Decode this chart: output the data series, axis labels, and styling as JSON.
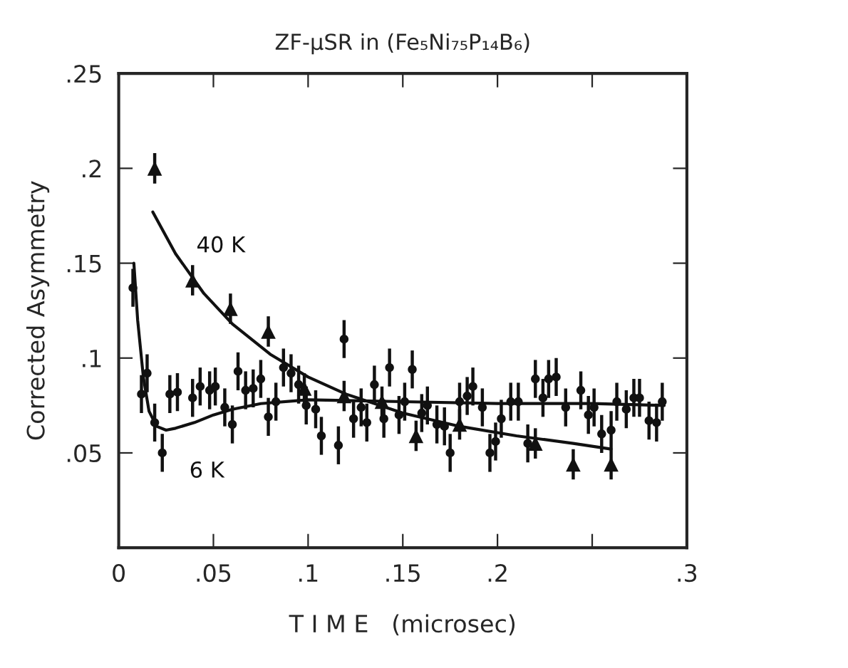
{
  "chart_data": {
    "type": "scatter",
    "title": "ZF-μSR in (Fe₅Ni₇₅P₁₄B₆)",
    "xlabel": "T I M E   (microsec)",
    "ylabel": "Corrected Asymmetry",
    "xlim": [
      0,
      0.3
    ],
    "ylim": [
      0,
      0.25
    ],
    "xticks": [
      {
        "value": 0,
        "label": "0"
      },
      {
        "value": 0.05,
        "label": ".05"
      },
      {
        "value": 0.1,
        "label": ".1"
      },
      {
        "value": 0.15,
        "label": ".15"
      },
      {
        "value": 0.2,
        "label": ".2"
      },
      {
        "value": 0.25,
        "label": null
      },
      {
        "value": 0.3,
        "label": ".3"
      }
    ],
    "yticks": [
      {
        "value": 0.05,
        "label": ".05"
      },
      {
        "value": 0.1,
        "label": ".1"
      },
      {
        "value": 0.15,
        "label": ".15"
      },
      {
        "value": 0.2,
        "label": ".2"
      },
      {
        "value": 0.25,
        "label": ".25"
      }
    ],
    "grid": false,
    "legend": false,
    "series": [
      {
        "marker": "triangle",
        "color": "#111111",
        "x": [
          0.019,
          0.039,
          0.059,
          0.079,
          0.098,
          0.119,
          0.139,
          0.157,
          0.18,
          0.22,
          0.24,
          0.26
        ],
        "values": [
          0.2,
          0.141,
          0.126,
          0.114,
          0.084,
          0.08,
          0.077,
          0.059,
          0.065,
          0.055,
          0.044,
          0.044
        ],
        "errors": [
          0.008,
          0.008,
          0.008,
          0.008,
          0.008,
          0.008,
          0.008,
          0.008,
          0.008,
          0.008,
          0.008,
          0.008
        ]
      },
      {
        "marker": "circle",
        "color": "#111111",
        "x": [
          0.0075,
          0.012,
          0.015,
          0.019,
          0.023,
          0.027,
          0.031,
          0.039,
          0.043,
          0.048,
          0.051,
          0.056,
          0.06,
          0.063,
          0.067,
          0.071,
          0.075,
          0.079,
          0.083,
          0.087,
          0.091,
          0.095,
          0.099,
          0.104,
          0.107,
          0.116,
          0.119,
          0.124,
          0.128,
          0.131,
          0.135,
          0.14,
          0.143,
          0.148,
          0.151,
          0.155,
          0.16,
          0.163,
          0.168,
          0.172,
          0.175,
          0.18,
          0.184,
          0.187,
          0.192,
          0.196,
          0.199,
          0.202,
          0.207,
          0.211,
          0.216,
          0.22,
          0.224,
          0.227,
          0.231,
          0.236,
          0.244,
          0.248,
          0.251,
          0.255,
          0.26,
          0.263,
          0.268,
          0.272,
          0.275,
          0.28,
          0.284,
          0.287
        ],
        "values": [
          0.137,
          0.081,
          0.092,
          0.066,
          0.05,
          0.081,
          0.082,
          0.079,
          0.085,
          0.083,
          0.085,
          0.074,
          0.065,
          0.093,
          0.083,
          0.084,
          0.089,
          0.069,
          0.077,
          0.095,
          0.092,
          0.086,
          0.075,
          0.073,
          0.059,
          0.054,
          0.11,
          0.068,
          0.074,
          0.066,
          0.086,
          0.068,
          0.095,
          0.07,
          0.077,
          0.094,
          0.071,
          0.075,
          0.065,
          0.064,
          0.05,
          0.077,
          0.08,
          0.085,
          0.074,
          0.05,
          0.056,
          0.068,
          0.077,
          0.077,
          0.055,
          0.089,
          0.079,
          0.089,
          0.09,
          0.074,
          0.083,
          0.07,
          0.074,
          0.06,
          0.062,
          0.077,
          0.073,
          0.079,
          0.079,
          0.067,
          0.066,
          0.077
        ],
        "errors": [
          0.01,
          0.01,
          0.01,
          0.01,
          0.01,
          0.01,
          0.01,
          0.01,
          0.01,
          0.01,
          0.01,
          0.01,
          0.01,
          0.01,
          0.01,
          0.01,
          0.01,
          0.01,
          0.01,
          0.01,
          0.01,
          0.01,
          0.01,
          0.01,
          0.01,
          0.01,
          0.01,
          0.01,
          0.01,
          0.01,
          0.01,
          0.01,
          0.01,
          0.01,
          0.01,
          0.01,
          0.01,
          0.01,
          0.01,
          0.01,
          0.01,
          0.01,
          0.01,
          0.01,
          0.01,
          0.01,
          0.01,
          0.01,
          0.01,
          0.01,
          0.01,
          0.01,
          0.01,
          0.01,
          0.01,
          0.01,
          0.01,
          0.01,
          0.01,
          0.01,
          0.01,
          0.01,
          0.01,
          0.01,
          0.01,
          0.01,
          0.01,
          0.01
        ]
      },
      {
        "type": "line",
        "name": "40 K",
        "marker": "none",
        "line_style": "solid",
        "color": "#111111",
        "x": [
          0.018,
          0.03,
          0.045,
          0.06,
          0.08,
          0.1,
          0.12,
          0.15,
          0.18,
          0.21,
          0.24,
          0.26
        ],
        "values": [
          0.177,
          0.155,
          0.134,
          0.118,
          0.102,
          0.09,
          0.081,
          0.071,
          0.064,
          0.059,
          0.055,
          0.052
        ]
      },
      {
        "type": "line",
        "name": "6 K",
        "marker": "none",
        "line_style": "solid",
        "color": "#111111",
        "x": [
          0.008,
          0.01,
          0.013,
          0.016,
          0.02,
          0.025,
          0.03,
          0.04,
          0.05,
          0.06,
          0.075,
          0.1,
          0.15,
          0.2,
          0.25,
          0.288
        ],
        "values": [
          0.15,
          0.12,
          0.09,
          0.072,
          0.064,
          0.062,
          0.063,
          0.066,
          0.07,
          0.073,
          0.076,
          0.078,
          0.077,
          0.076,
          0.076,
          0.075
        ]
      }
    ]
  }
}
